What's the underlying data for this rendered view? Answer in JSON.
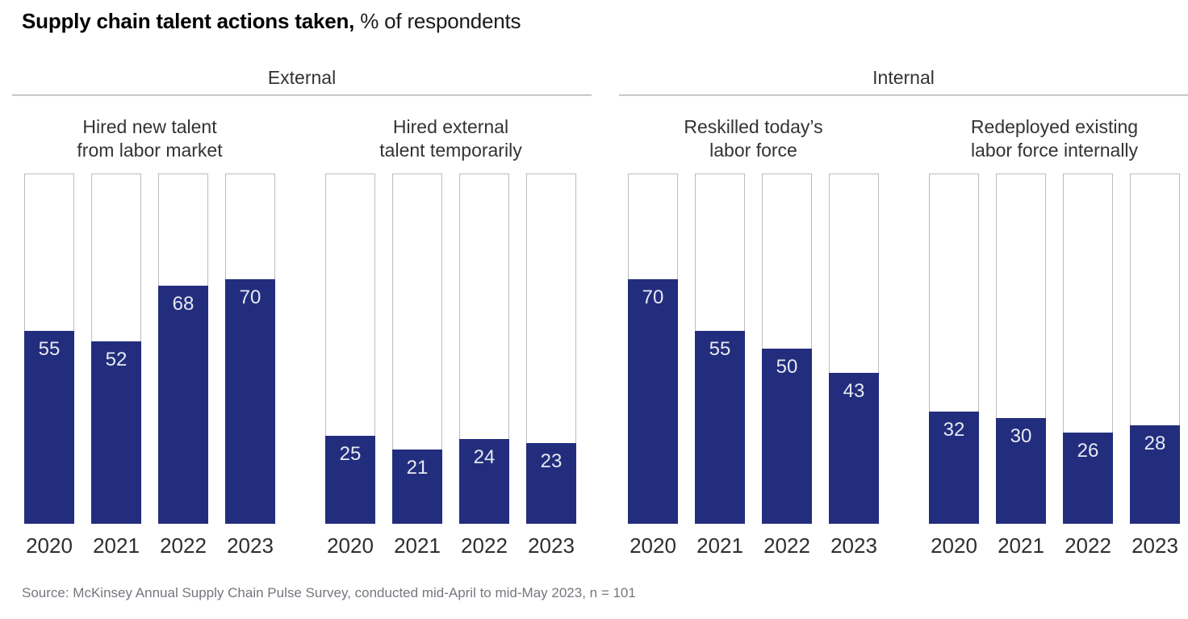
{
  "title": {
    "main": "Supply chain talent actions taken,",
    "sub": " % of respondents"
  },
  "source": "Source: McKinsey Annual Supply Chain Pulse Survey, conducted mid-April to mid-May 2023, n = 101",
  "colors": {
    "bar_fill": "#222d7d",
    "bar_outline": "#bdbdbd",
    "value_label": "#e7e9f1",
    "section_rule": "#d2d2d2",
    "text_dark": "#333333",
    "source_text": "#76767f"
  },
  "chart_data": {
    "type": "bar",
    "title": "Supply chain talent actions taken",
    "unit": "% of respondents",
    "ylim": [
      0,
      100
    ],
    "grid": false,
    "legend": "none",
    "categories": [
      "2020",
      "2021",
      "2022",
      "2023"
    ],
    "sections": [
      {
        "label": "External",
        "charts": [
          {
            "label": "Hired new talent from labor market",
            "label_lines": [
              "Hired new talent",
              "from labor market"
            ],
            "values": [
              55,
              52,
              68,
              70
            ]
          },
          {
            "label": "Hired external talent temporarily",
            "label_lines": [
              "Hired external",
              "talent temporarily"
            ],
            "values": [
              25,
              21,
              24,
              23
            ]
          }
        ]
      },
      {
        "label": "Internal",
        "charts": [
          {
            "label": "Reskilled today’s labor force",
            "label_lines": [
              "Reskilled today’s",
              "labor force"
            ],
            "values": [
              70,
              55,
              50,
              43
            ]
          },
          {
            "label": "Redeployed existing labor force internally",
            "label_lines": [
              "Redeployed existing",
              "labor force internally"
            ],
            "values": [
              32,
              30,
              26,
              28
            ]
          }
        ]
      }
    ]
  }
}
